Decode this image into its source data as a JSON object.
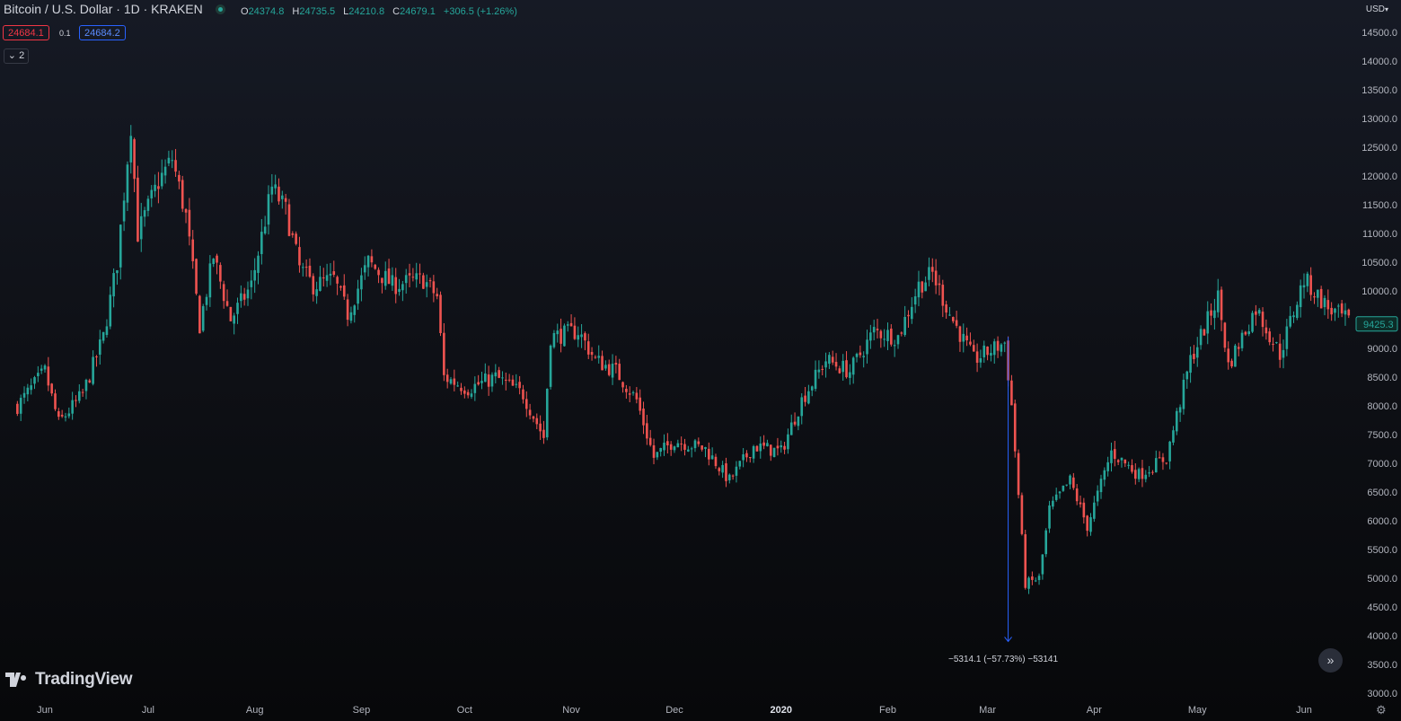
{
  "header": {
    "symbol": "Bitcoin / U.S. Dollar · 1D · KRAKEN",
    "ohlc": {
      "o_label": "O",
      "o": "24374.8",
      "h_label": "H",
      "h": "24735.5",
      "l_label": "L",
      "l": "24210.8",
      "c_label": "C",
      "c": "24679.1",
      "change": "+306.5 (+1.26%)"
    },
    "bid": "24684.1",
    "spread": "0.1",
    "ask": "24684.2",
    "collapsed_count": "2"
  },
  "currency": "USD",
  "currency_icon": "chevron-down-icon",
  "last_price_label": "9425.3",
  "measure": {
    "label": "−5314.1 (−57.73%) −53141"
  },
  "logo_text": "TradingView",
  "colors": {
    "up": "#26a69a",
    "down": "#ef5350",
    "measure": "#2962ff",
    "background": "#0f1117"
  },
  "chart_data": {
    "type": "candlestick",
    "title": "Bitcoin / U.S. Dollar · 1D · KRAKEN",
    "y_ticks": [
      "14500.0",
      "14000.0",
      "13500.0",
      "13000.0",
      "12500.0",
      "12000.0",
      "11500.0",
      "11000.0",
      "10500.0",
      "10000.0",
      "9500.0",
      "9000.0",
      "8500.0",
      "8000.0",
      "7500.0",
      "7000.0",
      "6500.0",
      "6000.0",
      "5500.0",
      "5000.0",
      "4500.0",
      "4000.0",
      "3500.0",
      "3000.0"
    ],
    "ylim": [
      3000,
      14500
    ],
    "x_ticks": [
      "Jun",
      "Jul",
      "Aug",
      "Sep",
      "Oct",
      "Nov",
      "Dec",
      "2020",
      "Feb",
      "Mar",
      "Apr",
      "May",
      "Jun"
    ],
    "x_bold": "2020",
    "approx_path": [
      {
        "date": "2019-05-24",
        "close": 8000
      },
      {
        "date": "2019-06-01",
        "close": 8600
      },
      {
        "date": "2019-06-05",
        "close": 7700
      },
      {
        "date": "2019-06-12",
        "close": 8200
      },
      {
        "date": "2019-06-18",
        "close": 9200
      },
      {
        "date": "2019-06-22",
        "close": 10500
      },
      {
        "date": "2019-06-26",
        "close": 12900
      },
      {
        "date": "2019-06-28",
        "close": 11000
      },
      {
        "date": "2019-07-04",
        "close": 11900
      },
      {
        "date": "2019-07-08",
        "close": 12300
      },
      {
        "date": "2019-07-12",
        "close": 11300
      },
      {
        "date": "2019-07-16",
        "close": 9400
      },
      {
        "date": "2019-07-20",
        "close": 10600
      },
      {
        "date": "2019-07-25",
        "close": 9500
      },
      {
        "date": "2019-07-31",
        "close": 10100
      },
      {
        "date": "2019-08-06",
        "close": 11800
      },
      {
        "date": "2019-08-10",
        "close": 11400
      },
      {
        "date": "2019-08-14",
        "close": 10400
      },
      {
        "date": "2019-08-18",
        "close": 10100
      },
      {
        "date": "2019-08-24",
        "close": 10200
      },
      {
        "date": "2019-08-28",
        "close": 9600
      },
      {
        "date": "2019-09-03",
        "close": 10500
      },
      {
        "date": "2019-09-10",
        "close": 10100
      },
      {
        "date": "2019-09-19",
        "close": 10200
      },
      {
        "date": "2019-09-23",
        "close": 9900
      },
      {
        "date": "2019-09-25",
        "close": 8500
      },
      {
        "date": "2019-10-02",
        "close": 8300
      },
      {
        "date": "2019-10-10",
        "close": 8500
      },
      {
        "date": "2019-10-18",
        "close": 8200
      },
      {
        "date": "2019-10-24",
        "close": 7450
      },
      {
        "date": "2019-10-26",
        "close": 9200
      },
      {
        "date": "2019-11-03",
        "close": 9300
      },
      {
        "date": "2019-11-08",
        "close": 8800
      },
      {
        "date": "2019-11-14",
        "close": 8600
      },
      {
        "date": "2019-11-20",
        "close": 8100
      },
      {
        "date": "2019-11-25",
        "close": 7100
      },
      {
        "date": "2019-12-01",
        "close": 7400
      },
      {
        "date": "2019-12-10",
        "close": 7250
      },
      {
        "date": "2019-12-17",
        "close": 6700
      },
      {
        "date": "2019-12-24",
        "close": 7300
      },
      {
        "date": "2020-01-01",
        "close": 7200
      },
      {
        "date": "2020-01-07",
        "close": 8100
      },
      {
        "date": "2020-01-14",
        "close": 8800
      },
      {
        "date": "2020-01-21",
        "close": 8600
      },
      {
        "date": "2020-01-28",
        "close": 9300
      },
      {
        "date": "2020-02-04",
        "close": 9200
      },
      {
        "date": "2020-02-10",
        "close": 10100
      },
      {
        "date": "2020-02-14",
        "close": 10300
      },
      {
        "date": "2020-02-19",
        "close": 9600
      },
      {
        "date": "2020-02-26",
        "close": 8800
      },
      {
        "date": "2020-03-06",
        "close": 9100
      },
      {
        "date": "2020-03-08",
        "close": 8000
      },
      {
        "date": "2020-03-12",
        "close": 4900
      },
      {
        "date": "2020-03-16",
        "close": 5000
      },
      {
        "date": "2020-03-19",
        "close": 6200
      },
      {
        "date": "2020-03-25",
        "close": 6700
      },
      {
        "date": "2020-03-30",
        "close": 5900
      },
      {
        "date": "2020-04-06",
        "close": 7200
      },
      {
        "date": "2020-04-14",
        "close": 6800
      },
      {
        "date": "2020-04-22",
        "close": 7100
      },
      {
        "date": "2020-04-29",
        "close": 8800
      },
      {
        "date": "2020-05-07",
        "close": 9900
      },
      {
        "date": "2020-05-10",
        "close": 8700
      },
      {
        "date": "2020-05-18",
        "close": 9700
      },
      {
        "date": "2020-05-25",
        "close": 8900
      },
      {
        "date": "2020-06-01",
        "close": 10200
      },
      {
        "date": "2020-06-08",
        "close": 9700
      },
      {
        "date": "2020-06-15",
        "close": 9425
      }
    ]
  }
}
